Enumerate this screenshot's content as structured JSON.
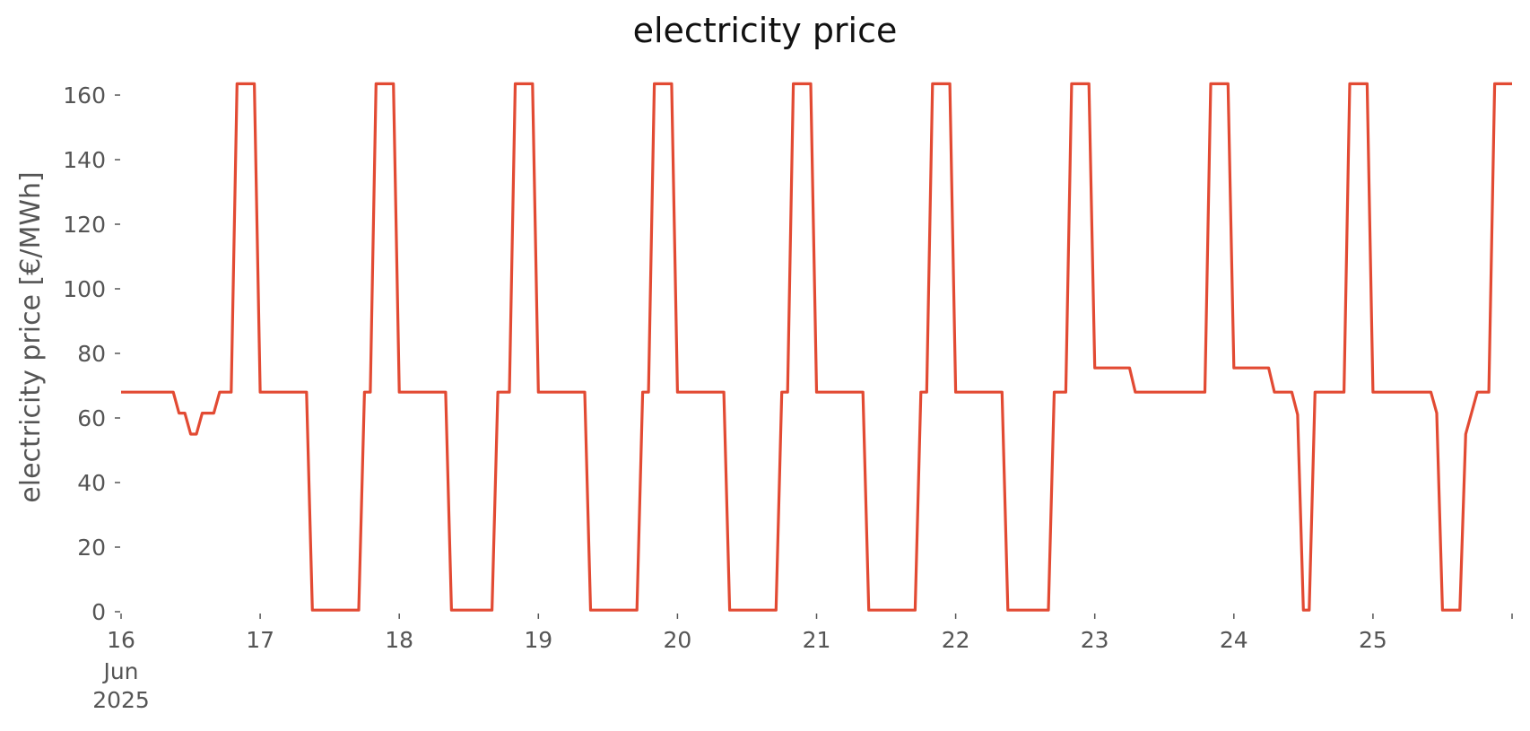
{
  "chart_data": {
    "type": "line",
    "title": "electricity price",
    "xlabel": "",
    "ylabel": "electricity price [€/MWh]",
    "ylim": [
      0,
      170
    ],
    "xlim": [
      "2025-06-16T00:00",
      "2025-06-26T00:00"
    ],
    "grid": false,
    "y_ticks": [
      0,
      20,
      40,
      60,
      80,
      100,
      120,
      140,
      160
    ],
    "x_ticks": [
      {
        "date": "2025-06-16",
        "label": "16",
        "sublabels": [
          "Jun",
          "2025"
        ]
      },
      {
        "date": "2025-06-17",
        "label": "17"
      },
      {
        "date": "2025-06-18",
        "label": "18"
      },
      {
        "date": "2025-06-19",
        "label": "19"
      },
      {
        "date": "2025-06-20",
        "label": "20"
      },
      {
        "date": "2025-06-21",
        "label": "21"
      },
      {
        "date": "2025-06-22",
        "label": "22"
      },
      {
        "date": "2025-06-23",
        "label": "23"
      },
      {
        "date": "2025-06-24",
        "label": "24"
      },
      {
        "date": "2025-06-25",
        "label": "25"
      },
      {
        "date": "2025-06-26",
        "label": ""
      }
    ],
    "series": [
      {
        "name": "",
        "color": "#e24a33",
        "points": [
          [
            "2025-06-16T00:00",
            68
          ],
          [
            "2025-06-16T09:00",
            68
          ],
          [
            "2025-06-16T10:00",
            61.5
          ],
          [
            "2025-06-16T11:00",
            61.5
          ],
          [
            "2025-06-16T12:00",
            55
          ],
          [
            "2025-06-16T13:00",
            55
          ],
          [
            "2025-06-16T14:00",
            61.5
          ],
          [
            "2025-06-16T16:00",
            61.5
          ],
          [
            "2025-06-16T17:00",
            68
          ],
          [
            "2025-06-16T19:00",
            68
          ],
          [
            "2025-06-16T20:00",
            163.5
          ],
          [
            "2025-06-16T23:00",
            163.5
          ],
          [
            "2025-06-17T00:00",
            68
          ],
          [
            "2025-06-17T08:00",
            68
          ],
          [
            "2025-06-17T09:00",
            0.5
          ],
          [
            "2025-06-17T17:00",
            0.5
          ],
          [
            "2025-06-17T18:00",
            68
          ],
          [
            "2025-06-17T19:00",
            68
          ],
          [
            "2025-06-17T20:00",
            163.5
          ],
          [
            "2025-06-17T23:00",
            163.5
          ],
          [
            "2025-06-18T00:00",
            68
          ],
          [
            "2025-06-18T08:00",
            68
          ],
          [
            "2025-06-18T09:00",
            0.5
          ],
          [
            "2025-06-18T16:00",
            0.5
          ],
          [
            "2025-06-18T17:00",
            68
          ],
          [
            "2025-06-18T19:00",
            68
          ],
          [
            "2025-06-18T20:00",
            163.5
          ],
          [
            "2025-06-18T23:00",
            163.5
          ],
          [
            "2025-06-19T00:00",
            68
          ],
          [
            "2025-06-19T08:00",
            68
          ],
          [
            "2025-06-19T09:00",
            0.5
          ],
          [
            "2025-06-19T17:00",
            0.5
          ],
          [
            "2025-06-19T18:00",
            68
          ],
          [
            "2025-06-19T19:00",
            68
          ],
          [
            "2025-06-19T20:00",
            163.5
          ],
          [
            "2025-06-19T23:00",
            163.5
          ],
          [
            "2025-06-20T00:00",
            68
          ],
          [
            "2025-06-20T08:00",
            68
          ],
          [
            "2025-06-20T09:00",
            0.5
          ],
          [
            "2025-06-20T17:00",
            0.5
          ],
          [
            "2025-06-20T18:00",
            68
          ],
          [
            "2025-06-20T19:00",
            68
          ],
          [
            "2025-06-20T20:00",
            163.5
          ],
          [
            "2025-06-20T23:00",
            163.5
          ],
          [
            "2025-06-21T00:00",
            68
          ],
          [
            "2025-06-21T08:00",
            68
          ],
          [
            "2025-06-21T09:00",
            0.5
          ],
          [
            "2025-06-21T17:00",
            0.5
          ],
          [
            "2025-06-21T18:00",
            68
          ],
          [
            "2025-06-21T19:00",
            68
          ],
          [
            "2025-06-21T20:00",
            163.5
          ],
          [
            "2025-06-21T23:00",
            163.5
          ],
          [
            "2025-06-22T00:00",
            68
          ],
          [
            "2025-06-22T08:00",
            68
          ],
          [
            "2025-06-22T09:00",
            0.5
          ],
          [
            "2025-06-22T16:00",
            0.5
          ],
          [
            "2025-06-22T17:00",
            68
          ],
          [
            "2025-06-22T19:00",
            68
          ],
          [
            "2025-06-22T20:00",
            163.5
          ],
          [
            "2025-06-22T23:00",
            163.5
          ],
          [
            "2025-06-23T00:00",
            75.5
          ],
          [
            "2025-06-23T06:00",
            75.5
          ],
          [
            "2025-06-23T07:00",
            68
          ],
          [
            "2025-06-23T19:00",
            68
          ],
          [
            "2025-06-23T20:00",
            163.5
          ],
          [
            "2025-06-23T23:00",
            163.5
          ],
          [
            "2025-06-24T00:00",
            75.5
          ],
          [
            "2025-06-24T06:00",
            75.5
          ],
          [
            "2025-06-24T07:00",
            68
          ],
          [
            "2025-06-24T10:00",
            68
          ],
          [
            "2025-06-24T11:00",
            61
          ],
          [
            "2025-06-24T12:00",
            0.5
          ],
          [
            "2025-06-24T13:00",
            0.5
          ],
          [
            "2025-06-24T14:00",
            68
          ],
          [
            "2025-06-24T19:00",
            68
          ],
          [
            "2025-06-24T20:00",
            163.5
          ],
          [
            "2025-06-24T23:00",
            163.5
          ],
          [
            "2025-06-25T00:00",
            68
          ],
          [
            "2025-06-25T10:00",
            68
          ],
          [
            "2025-06-25T11:00",
            61.5
          ],
          [
            "2025-06-25T12:00",
            0.5
          ],
          [
            "2025-06-25T15:00",
            0.5
          ],
          [
            "2025-06-25T16:00",
            55
          ],
          [
            "2025-06-25T18:00",
            68
          ],
          [
            "2025-06-25T20:00",
            68
          ],
          [
            "2025-06-25T21:00",
            163.5
          ],
          [
            "2025-06-26T00:00",
            163.5
          ]
        ]
      }
    ]
  }
}
